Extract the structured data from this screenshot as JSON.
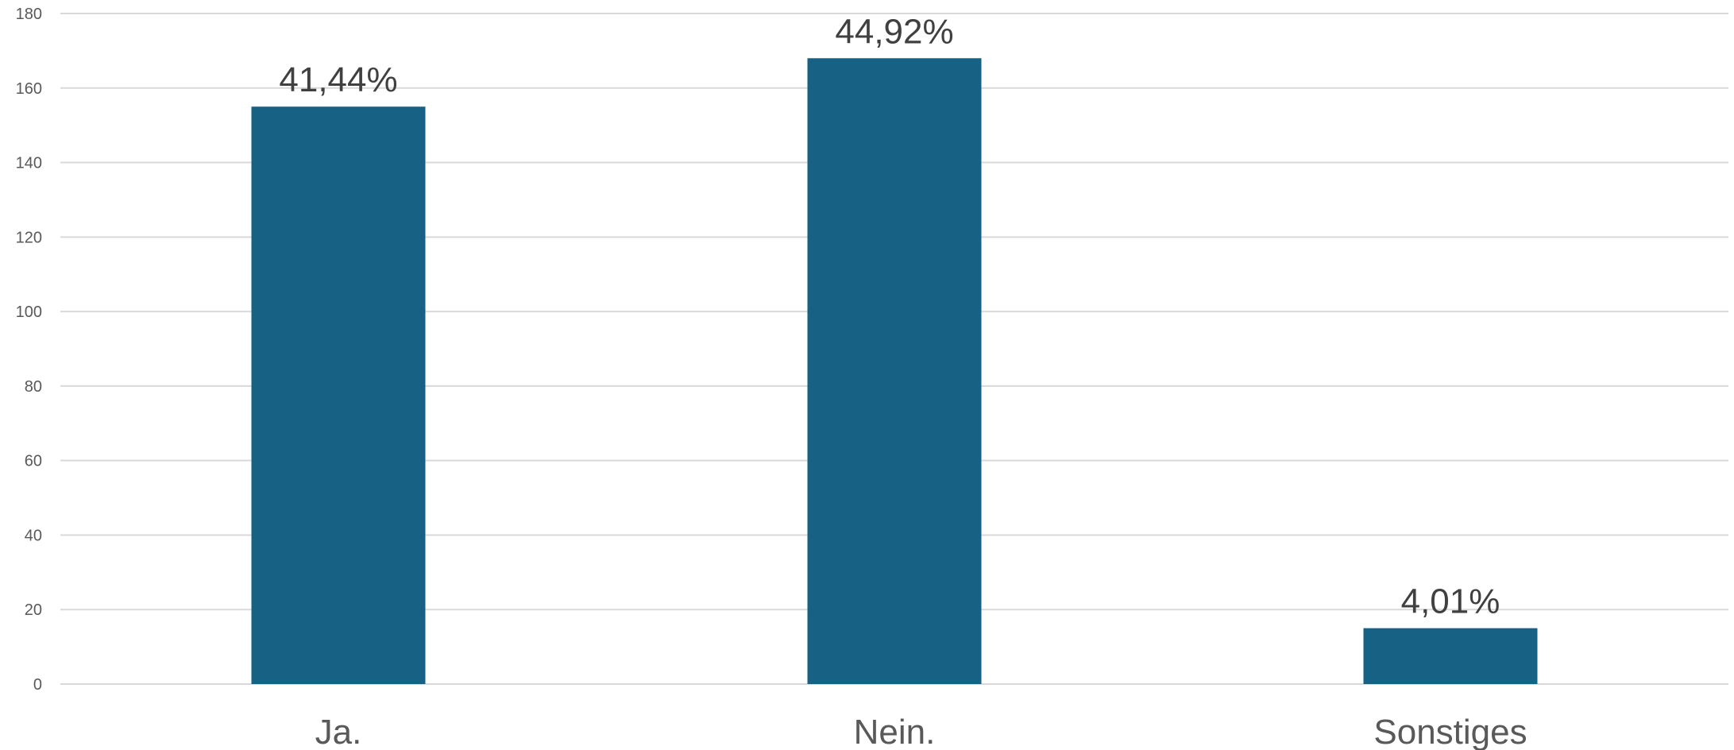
{
  "chart_data": {
    "type": "bar",
    "categories": [
      "Ja.",
      "Nein.",
      "Sonstiges"
    ],
    "values": [
      155,
      168,
      15
    ],
    "data_labels": [
      "41,44%",
      "44,92%",
      "4,01%"
    ],
    "ylim": [
      0,
      180
    ],
    "yticks": [
      0,
      20,
      40,
      60,
      80,
      100,
      120,
      140,
      160,
      180
    ],
    "ytick_labels": [
      "0",
      "20",
      "40",
      "60",
      "80",
      "100",
      "120",
      "140",
      "160",
      "180"
    ],
    "grid": true,
    "legend": "none",
    "bar_color": "#176185"
  }
}
